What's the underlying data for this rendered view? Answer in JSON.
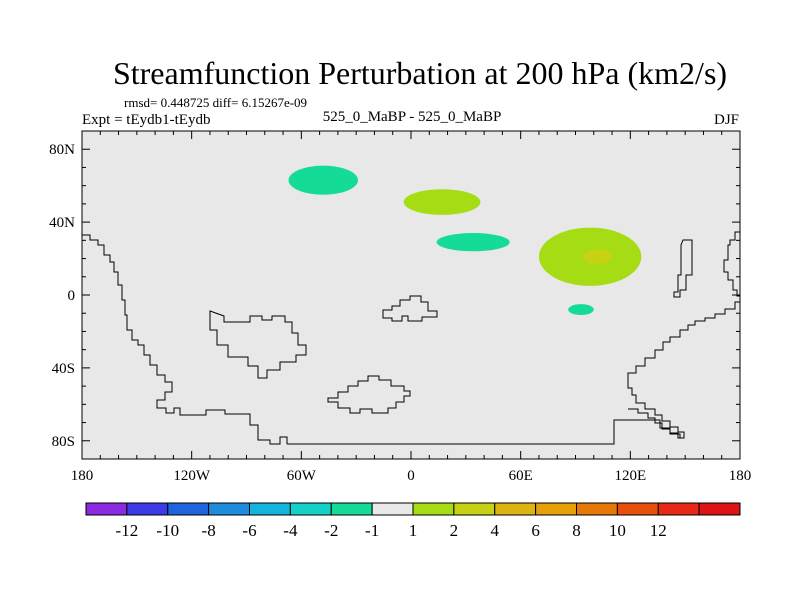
{
  "chart_data": {
    "type": "map-contour",
    "title": "Streamfunction Perturbation at 200 hPa (km2/s)",
    "stats": "rmsd= 0.448725 diff= 6.15267e-09",
    "left_label": "Expt = tEydb1-tEydb",
    "center_label": "525_0_MaBP - 525_0_MaBP",
    "right_label": "DJF",
    "x_range": [
      -180,
      180
    ],
    "y_range": [
      -90,
      90
    ],
    "x_ticks": [
      {
        "value": -180,
        "label": "180"
      },
      {
        "value": -120,
        "label": "120W"
      },
      {
        "value": -60,
        "label": "60W"
      },
      {
        "value": 0,
        "label": "0"
      },
      {
        "value": 60,
        "label": "60E"
      },
      {
        "value": 120,
        "label": "120E"
      },
      {
        "value": 180,
        "label": "180"
      }
    ],
    "y_ticks": [
      {
        "value": 80,
        "label": "80N"
      },
      {
        "value": 40,
        "label": "40N"
      },
      {
        "value": 0,
        "label": "0"
      },
      {
        "value": -40,
        "label": "40S"
      },
      {
        "value": -80,
        "label": "80S"
      }
    ],
    "colorbar": {
      "colors": [
        "#8a2be2",
        "#3c3ce6",
        "#1e64dc",
        "#1e8cdc",
        "#14b4dc",
        "#14d2c8",
        "#14dc96",
        "#e8e8e8",
        "#a6dc14",
        "#c8d214",
        "#dcb414",
        "#e6a00a",
        "#e6780a",
        "#e6500a",
        "#e62814",
        "#dc1414"
      ],
      "labels": [
        "-12",
        "-10",
        "-8",
        "-6",
        "-4",
        "-2",
        "-1",
        "1",
        "2",
        "4",
        "6",
        "8",
        "10",
        "12"
      ]
    },
    "features": [
      {
        "name": "anomaly-north-atlantic",
        "value": "-1 to -2",
        "color": "#14dc96",
        "lon": -48,
        "lat": 63,
        "rlon": 19,
        "rlat": 8
      },
      {
        "name": "anomaly-europe",
        "value": "1 to 2",
        "color": "#a6dc14",
        "lon": 17,
        "lat": 51,
        "rlon": 21,
        "rlat": 7
      },
      {
        "name": "anomaly-middle-east",
        "value": "-1 to -2",
        "color": "#14dc96",
        "lon": 34,
        "lat": 29,
        "rlon": 20,
        "rlat": 5
      },
      {
        "name": "anomaly-asia",
        "value": "1 to 2",
        "color": "#a6dc14",
        "lon": 98,
        "lat": 21,
        "rlon": 28,
        "rlat": 16
      },
      {
        "name": "anomaly-asia-core",
        "value": "2 to 4",
        "color": "#c8d214",
        "lon": 102,
        "lat": 21,
        "rlon": 8,
        "rlat": 4
      },
      {
        "name": "anomaly-indian-ocean",
        "value": "-1 to -2",
        "color": "#14dc96",
        "lon": 93,
        "lat": -8,
        "rlon": 7,
        "rlat": 3
      }
    ]
  }
}
